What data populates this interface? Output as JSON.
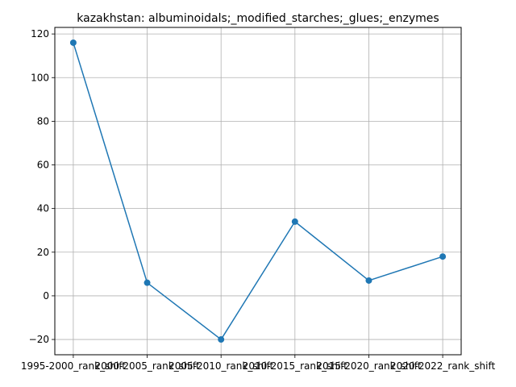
{
  "chart_data": {
    "type": "line",
    "title": "kazakhstan: albuminoidals;_modified_starches;_glues;_enzymes",
    "xlabel": "",
    "ylabel": "",
    "categories": [
      "1995-2000_rank_shift",
      "2000-2005_rank_shift",
      "2005-2010_rank_shift",
      "2010-2015_rank_shift",
      "2015-2020_rank_shift",
      "2020-2022_rank_shift"
    ],
    "series": [
      {
        "values": [
          116,
          6,
          -20,
          34,
          7,
          18
        ]
      }
    ],
    "ylim": [
      -27,
      123
    ],
    "yticks": [
      -20,
      0,
      20,
      40,
      60,
      80,
      100,
      120
    ],
    "grid": true,
    "line_color": "#1f77b4",
    "marker": "circle"
  }
}
